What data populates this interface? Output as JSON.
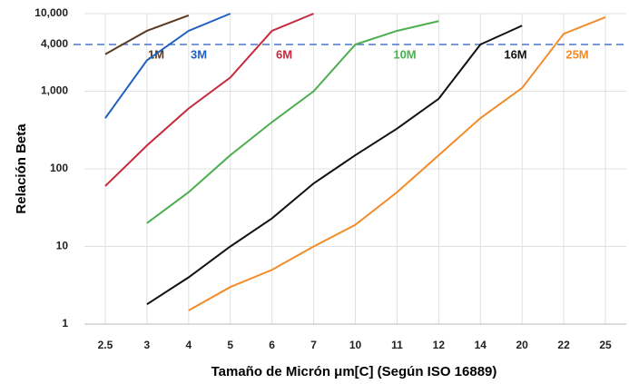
{
  "chart_data": {
    "type": "line",
    "xlabel": "Tamaño de Micrón μm[C] (Según ISO 16889)",
    "ylabel": "Relación Beta",
    "categories": [
      "2.5",
      "3",
      "4",
      "5",
      "6",
      "7",
      "10",
      "11",
      "12",
      "14",
      "20",
      "22",
      "25"
    ],
    "log_y": true,
    "grid": true,
    "ylim": [
      1,
      10000
    ],
    "yticks": [
      1,
      10,
      100,
      {
        "value": 1000,
        "label": "1,000"
      },
      {
        "value": 10000,
        "label": "10,000"
      }
    ],
    "reference_line": {
      "value": 4000,
      "label": "4,000",
      "color": "#4a78c8"
    },
    "series": [
      {
        "name": "1M",
        "color": "#5a3a22",
        "values": [
          3000,
          6000,
          9500,
          null,
          null,
          null,
          null,
          null,
          null,
          null,
          null,
          null,
          null
        ]
      },
      {
        "name": "3M",
        "color": "#1f5fbf",
        "values": [
          450,
          2500,
          6000,
          10000,
          null,
          null,
          null,
          null,
          null,
          null,
          null,
          null,
          null
        ]
      },
      {
        "name": "6M",
        "color": "#c8283c",
        "values": [
          60,
          200,
          600,
          1500,
          6000,
          10000,
          null,
          null,
          null,
          null,
          null,
          null,
          null
        ]
      },
      {
        "name": "10M",
        "color": "#4caf50",
        "values": [
          null,
          20,
          50,
          150,
          400,
          1000,
          4000,
          6000,
          8000,
          null,
          null,
          null,
          null
        ]
      },
      {
        "name": "16M",
        "color": "#111111",
        "values": [
          null,
          1.8,
          4,
          10,
          23,
          65,
          150,
          330,
          800,
          4000,
          7000,
          null,
          null
        ]
      },
      {
        "name": "25M",
        "color": "#f28c28",
        "values": [
          null,
          null,
          1.5,
          3,
          5,
          10,
          19,
          50,
          150,
          450,
          1100,
          5500,
          9000
        ]
      }
    ]
  }
}
